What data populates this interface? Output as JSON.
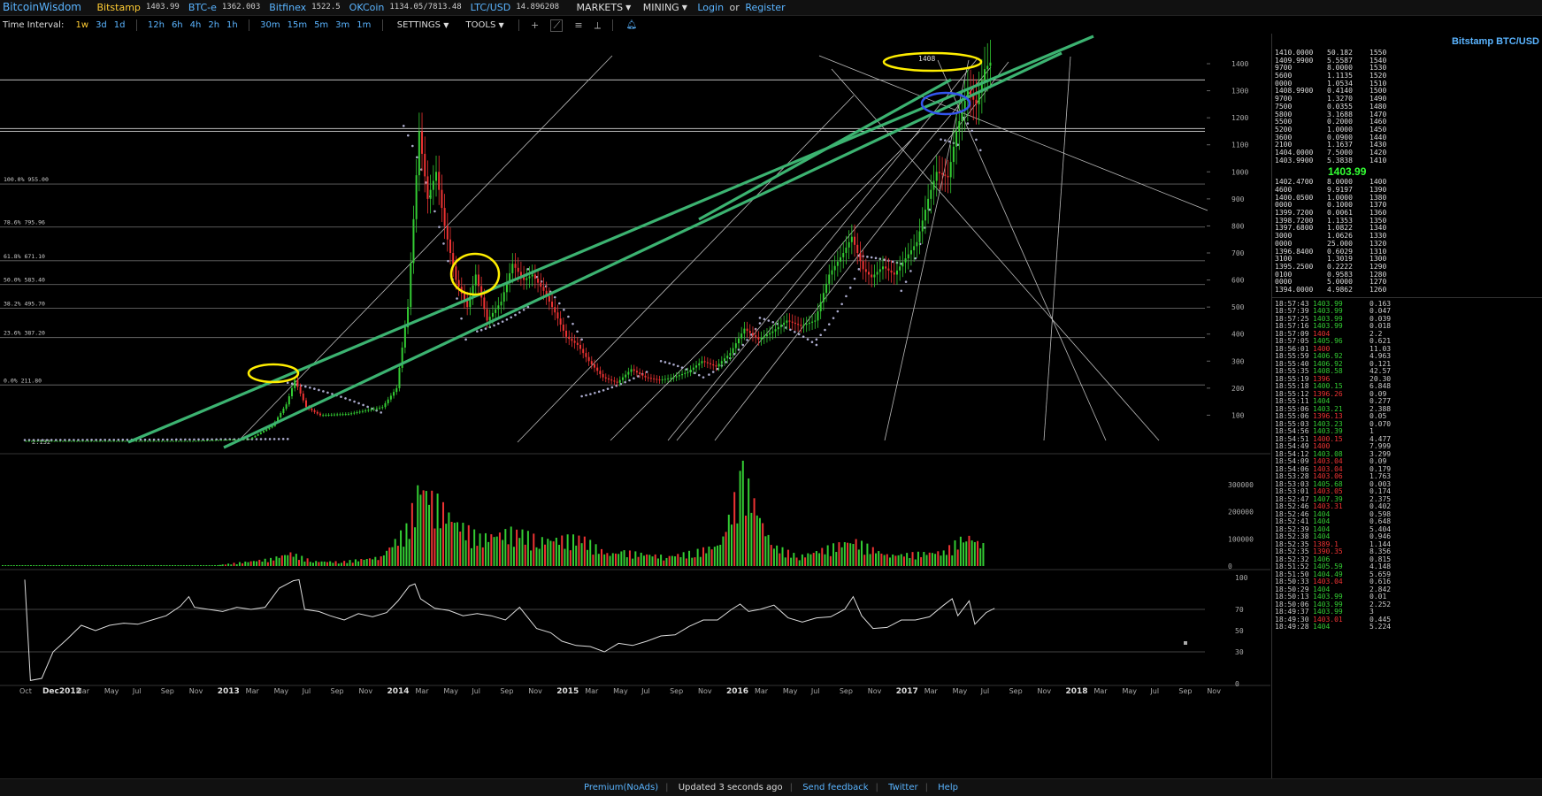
{
  "topbar": {
    "brand": "BitcoinWisdom",
    "markets": [
      {
        "name": "Bitstamp",
        "value": "1403.99",
        "color": "#ffcc33"
      },
      {
        "name": "BTC-e",
        "value": "1362.003",
        "color": "#5ab4ff"
      },
      {
        "name": "Bitfinex",
        "value": "1522.5",
        "color": "#5ab4ff"
      },
      {
        "name": "OKCoin",
        "value": "1134.05/7813.48",
        "color": "#5ab4ff"
      },
      {
        "name": "LTC/USD",
        "value": "14.896208",
        "color": "#5ab4ff"
      }
    ],
    "menus": [
      "MARKETS",
      "MINING"
    ],
    "login": "Login",
    "or": "or",
    "register": "Register"
  },
  "toolbar": {
    "time_interval_label": "Time Interval:",
    "intervals_group1": [
      "1w",
      "3d",
      "1d"
    ],
    "intervals_group2": [
      "12h",
      "6h",
      "4h",
      "2h",
      "1h"
    ],
    "intervals_group3": [
      "30m",
      "15m",
      "5m",
      "3m",
      "1m"
    ],
    "active_interval": "1w",
    "settings": "SETTINGS",
    "tools": "TOOLS"
  },
  "chart_data": {
    "type": "candlestick",
    "price_ticks": [
      100,
      200,
      300,
      400,
      500,
      600,
      700,
      800,
      900,
      1000,
      1100,
      1200,
      1300,
      1400
    ],
    "volume_ticks": [
      "0",
      "100000",
      "200000",
      "300000"
    ],
    "rsi_ticks": [
      "0",
      "30",
      "50",
      "70",
      "100"
    ],
    "x_labels": [
      "Oct",
      "Dec2012",
      "Mar",
      "May",
      "Jul",
      "Sep",
      "Nov",
      "2013",
      "Mar",
      "May",
      "Jul",
      "Sep",
      "Nov",
      "2014",
      "Mar",
      "May",
      "Jul",
      "Sep",
      "Nov",
      "2015",
      "Mar",
      "May",
      "Jul",
      "Sep",
      "Nov",
      "2016",
      "Mar",
      "May",
      "Jul",
      "Sep",
      "Nov",
      "2017",
      "Mar",
      "May",
      "Jul",
      "Sep",
      "Nov",
      "2018",
      "Mar",
      "May",
      "Jul",
      "Sep",
      "Nov"
    ],
    "fib_levels": [
      {
        "label": "100.0% 955.00",
        "value": 955
      },
      {
        "label": "78.6% 795.96",
        "value": 795.96
      },
      {
        "label": "61.8% 671.10",
        "value": 671.1
      },
      {
        "label": "50.0% 583.40",
        "value": 583.4
      },
      {
        "label": "38.2% 495.70",
        "value": 495.7
      },
      {
        "label": "23.6% 387.20",
        "value": 387.2
      },
      {
        "label": "0.0% 211.80",
        "value": 211.8
      }
    ],
    "start_label": "2.132",
    "high_label": "1408",
    "price_path": [
      [
        0,
        5
      ],
      [
        6,
        5
      ],
      [
        8,
        12
      ],
      [
        8.8,
        60
      ],
      [
        9.3,
        140
      ],
      [
        9.6,
        230
      ],
      [
        10,
        130
      ],
      [
        10.5,
        100
      ],
      [
        11.5,
        105
      ],
      [
        12.7,
        130
      ],
      [
        13.2,
        200
      ],
      [
        13.6,
        500
      ],
      [
        14,
        1150
      ],
      [
        14.3,
        900
      ],
      [
        14.6,
        1000
      ],
      [
        14.9,
        800
      ],
      [
        15.3,
        600
      ],
      [
        15.7,
        500
      ],
      [
        16,
        620
      ],
      [
        16.4,
        450
      ],
      [
        16.9,
        520
      ],
      [
        17.3,
        660
      ],
      [
        17.7,
        600
      ],
      [
        18,
        620
      ],
      [
        18.4,
        560
      ],
      [
        18.8,
        480
      ],
      [
        19.2,
        390
      ],
      [
        19.6,
        360
      ],
      [
        20,
        300
      ],
      [
        20.5,
        240
      ],
      [
        21,
        220
      ],
      [
        21.5,
        270
      ],
      [
        22,
        240
      ],
      [
        22.5,
        230
      ],
      [
        23,
        240
      ],
      [
        23.5,
        260
      ],
      [
        24,
        300
      ],
      [
        24.5,
        280
      ],
      [
        25,
        330
      ],
      [
        25.5,
        420
      ],
      [
        26,
        380
      ],
      [
        26.5,
        410
      ],
      [
        27,
        450
      ],
      [
        27.5,
        430
      ],
      [
        28,
        450
      ],
      [
        28.5,
        620
      ],
      [
        29,
        700
      ],
      [
        29.3,
        760
      ],
      [
        29.7,
        640
      ],
      [
        30,
        610
      ],
      [
        30.4,
        650
      ],
      [
        30.8,
        620
      ],
      [
        31.2,
        680
      ],
      [
        31.6,
        740
      ],
      [
        32,
        900
      ],
      [
        32.3,
        1000
      ],
      [
        32.7,
        980
      ],
      [
        33,
        1150
      ],
      [
        33.4,
        1300
      ],
      [
        33.7,
        1250
      ],
      [
        34,
        1380
      ],
      [
        34.2,
        1403.99
      ]
    ],
    "rsi_path": [
      [
        0,
        98
      ],
      [
        0.2,
        3
      ],
      [
        0.6,
        5
      ],
      [
        1,
        30
      ],
      [
        1.5,
        42
      ],
      [
        2,
        55
      ],
      [
        2.5,
        50
      ],
      [
        3,
        55
      ],
      [
        3.5,
        57
      ],
      [
        4,
        56
      ],
      [
        4.5,
        60
      ],
      [
        5,
        64
      ],
      [
        5.5,
        73
      ],
      [
        5.8,
        82
      ],
      [
        6,
        72
      ],
      [
        6.5,
        70
      ],
      [
        7,
        68
      ],
      [
        7.5,
        72
      ],
      [
        8,
        70
      ],
      [
        8.5,
        72
      ],
      [
        9,
        90
      ],
      [
        9.5,
        97
      ],
      [
        9.7,
        98
      ],
      [
        9.9,
        70
      ],
      [
        10.4,
        68
      ],
      [
        10.8,
        64
      ],
      [
        11.3,
        60
      ],
      [
        11.8,
        66
      ],
      [
        12.3,
        63
      ],
      [
        12.8,
        67
      ],
      [
        13.2,
        78
      ],
      [
        13.6,
        92
      ],
      [
        13.8,
        94
      ],
      [
        14,
        80
      ],
      [
        14.5,
        71
      ],
      [
        15,
        69
      ],
      [
        15.5,
        64
      ],
      [
        16,
        66
      ],
      [
        16.5,
        64
      ],
      [
        17,
        60
      ],
      [
        17.5,
        72
      ],
      [
        17.8,
        62
      ],
      [
        18.1,
        52
      ],
      [
        18.6,
        48
      ],
      [
        19,
        40
      ],
      [
        19.5,
        36
      ],
      [
        20,
        35
      ],
      [
        20.5,
        30
      ],
      [
        21,
        38
      ],
      [
        21.5,
        36
      ],
      [
        22,
        40
      ],
      [
        22.5,
        45
      ],
      [
        23,
        46
      ],
      [
        23.5,
        54
      ],
      [
        24,
        60
      ],
      [
        24.5,
        60
      ],
      [
        25,
        70
      ],
      [
        25.3,
        75
      ],
      [
        25.6,
        68
      ],
      [
        26,
        70
      ],
      [
        26.5,
        74
      ],
      [
        27,
        62
      ],
      [
        27.5,
        58
      ],
      [
        28,
        62
      ],
      [
        28.5,
        63
      ],
      [
        29,
        70
      ],
      [
        29.3,
        82
      ],
      [
        29.6,
        64
      ],
      [
        30,
        52
      ],
      [
        30.5,
        53
      ],
      [
        31,
        60
      ],
      [
        31.5,
        60
      ],
      [
        32,
        63
      ],
      [
        32.5,
        74
      ],
      [
        32.8,
        80
      ],
      [
        33,
        64
      ],
      [
        33.4,
        78
      ],
      [
        33.6,
        56
      ],
      [
        34,
        67
      ],
      [
        34.3,
        71
      ]
    ],
    "volume_bars": [
      {
        "x": 6.9,
        "v": 5000
      },
      {
        "x": 8.7,
        "v": 30000
      },
      {
        "x": 9.4,
        "v": 55000
      },
      {
        "x": 10.2,
        "v": 20000
      },
      {
        "x": 11.2,
        "v": 18000
      },
      {
        "x": 12.6,
        "v": 38000
      },
      {
        "x": 13.5,
        "v": 160000
      },
      {
        "x": 14,
        "v": 340000
      },
      {
        "x": 14.5,
        "v": 280000
      },
      {
        "x": 15.2,
        "v": 190000
      },
      {
        "x": 16.1,
        "v": 120000
      },
      {
        "x": 17.4,
        "v": 150000
      },
      {
        "x": 18.2,
        "v": 110000
      },
      {
        "x": 19.7,
        "v": 120000
      },
      {
        "x": 20.6,
        "v": 50000
      },
      {
        "x": 21.2,
        "v": 60000
      },
      {
        "x": 22.7,
        "v": 40000
      },
      {
        "x": 23.7,
        "v": 60000
      },
      {
        "x": 24.6,
        "v": 90000
      },
      {
        "x": 25.4,
        "v": 388000
      },
      {
        "x": 26.4,
        "v": 90000
      },
      {
        "x": 27.4,
        "v": 40000
      },
      {
        "x": 29.3,
        "v": 110000
      },
      {
        "x": 30.5,
        "v": 45000
      },
      {
        "x": 32.5,
        "v": 60000
      },
      {
        "x": 33.3,
        "v": 130000
      },
      {
        "x": 34,
        "v": 80000
      }
    ]
  },
  "panel": {
    "title": "Bitstamp BTC/USD",
    "last_price": "1403.99",
    "asks": [
      [
        "1410.0000",
        "50.182",
        "1550"
      ],
      [
        "1409.9900",
        "5.5587",
        "1540"
      ],
      [
        "9700",
        "8.0000",
        "1530"
      ],
      [
        "5600",
        "1.1135",
        "1520"
      ],
      [
        "0000",
        "1.0534",
        "1510"
      ],
      [
        "1408.9900",
        "0.4140",
        "1500"
      ],
      [
        "9700",
        "1.3270",
        "1490"
      ],
      [
        "7500",
        "0.0355",
        "1480"
      ],
      [
        "5800",
        "3.1688",
        "1470"
      ],
      [
        "5500",
        "0.2000",
        "1460"
      ],
      [
        "5200",
        "1.0000",
        "1450"
      ],
      [
        "3600",
        "0.0900",
        "1440"
      ],
      [
        "2100",
        "1.1637",
        "1430"
      ],
      [
        "1404.0000",
        "7.5000",
        "1420"
      ],
      [
        "1403.9900",
        "5.3838",
        "1410"
      ]
    ],
    "bids": [
      [
        "1402.4700",
        "8.0000",
        "1400"
      ],
      [
        "4600",
        "9.9197",
        "1390"
      ],
      [
        "1400.0500",
        "1.0000",
        "1380"
      ],
      [
        "0000",
        "0.1000",
        "1370"
      ],
      [
        "1399.7200",
        "0.0061",
        "1360"
      ],
      [
        "1398.7200",
        "1.1353",
        "1350"
      ],
      [
        "1397.6800",
        "1.0822",
        "1340"
      ],
      [
        "3000",
        "1.0626",
        "1330"
      ],
      [
        "0000",
        "25.000",
        "1320"
      ],
      [
        "1396.8400",
        "0.6029",
        "1310"
      ],
      [
        "3100",
        "1.3019",
        "1300"
      ],
      [
        "1395.2500",
        "0.2222",
        "1290"
      ],
      [
        "0100",
        "0.9583",
        "1280"
      ],
      [
        "0000",
        "5.0000",
        "1270"
      ],
      [
        "1394.0000",
        "4.9862",
        "1260"
      ]
    ],
    "trades": [
      [
        "18:57:43",
        "1403.99",
        "up",
        "0.163"
      ],
      [
        "18:57:39",
        "1403.99",
        "up",
        "0.047"
      ],
      [
        "18:57:25",
        "1403.99",
        "up",
        "0.039"
      ],
      [
        "18:57:16",
        "1403.99",
        "up",
        "0.018"
      ],
      [
        "18:57:09",
        "1404",
        "dn",
        "2.2"
      ],
      [
        "18:57:05",
        "1405.96",
        "up",
        "0.621"
      ],
      [
        "18:56:01",
        "1400",
        "dn",
        "11.03"
      ],
      [
        "18:55:59",
        "1406.92",
        "up",
        "4.963"
      ],
      [
        "18:55:40",
        "1406.92",
        "up",
        "0.121"
      ],
      [
        "18:55:35",
        "1408.58",
        "up",
        "42.57"
      ],
      [
        "18:55:19",
        "1396",
        "dn",
        "20.30"
      ],
      [
        "18:55:18",
        "1400.15",
        "up",
        "6.848"
      ],
      [
        "18:55:12",
        "1396.26",
        "dn",
        "0.09"
      ],
      [
        "18:55:11",
        "1404",
        "up",
        "0.277"
      ],
      [
        "18:55:06",
        "1403.21",
        "up",
        "2.388"
      ],
      [
        "18:55:06",
        "1396.13",
        "dn",
        "0.05"
      ],
      [
        "18:55:03",
        "1403.23",
        "up",
        "0.070"
      ],
      [
        "18:54:56",
        "1403.39",
        "up",
        "1"
      ],
      [
        "18:54:51",
        "1400.15",
        "dn",
        "4.477"
      ],
      [
        "18:54:49",
        "1400",
        "dn",
        "7.999"
      ],
      [
        "18:54:12",
        "1403.08",
        "up",
        "3.299"
      ],
      [
        "18:54:09",
        "1403.04",
        "dn",
        "0.09"
      ],
      [
        "18:54:06",
        "1403.04",
        "dn",
        "0.179"
      ],
      [
        "18:53:28",
        "1403.06",
        "dn",
        "1.763"
      ],
      [
        "18:53:03",
        "1405.68",
        "up",
        "0.003"
      ],
      [
        "18:53:01",
        "1403.05",
        "dn",
        "0.174"
      ],
      [
        "18:52:47",
        "1407.39",
        "up",
        "2.375"
      ],
      [
        "18:52:46",
        "1403.31",
        "dn",
        "0.402"
      ],
      [
        "18:52:46",
        "1404",
        "up",
        "0.598"
      ],
      [
        "18:52:41",
        "1404",
        "up",
        "0.648"
      ],
      [
        "18:52:39",
        "1404",
        "up",
        "5.404"
      ],
      [
        "18:52:38",
        "1404",
        "up",
        "0.946"
      ],
      [
        "18:52:35",
        "1389.1",
        "dn",
        "1.144"
      ],
      [
        "18:52:35",
        "1390.35",
        "dn",
        "8.356"
      ],
      [
        "18:52:32",
        "1406",
        "up",
        "0.815"
      ],
      [
        "18:51:52",
        "1405.59",
        "up",
        "4.148"
      ],
      [
        "18:51:50",
        "1404.49",
        "up",
        "5.659"
      ],
      [
        "18:50:33",
        "1403.04",
        "dn",
        "0.616"
      ],
      [
        "18:50:29",
        "1404",
        "up",
        "2.842"
      ],
      [
        "18:50:13",
        "1403.99",
        "up",
        "0.01"
      ],
      [
        "18:50:06",
        "1403.99",
        "up",
        "2.252"
      ],
      [
        "18:49:37",
        "1403.99",
        "up",
        "3"
      ],
      [
        "18:49:30",
        "1403.01",
        "dn",
        "0.445"
      ],
      [
        "18:49:28",
        "1404",
        "up",
        "5.224"
      ]
    ]
  },
  "footer": {
    "premium": "Premium(NoAds)",
    "updated": "Updated 3 seconds ago",
    "feedback": "Send feedback",
    "twitter": "Twitter",
    "help": "Help"
  },
  "colors": {
    "up": "#33cc33",
    "down": "#ee3333",
    "trendline": "#3cb371",
    "highlight_yellow": "#ffee00",
    "highlight_blue": "#3355ee",
    "link": "#5ab4ff"
  }
}
